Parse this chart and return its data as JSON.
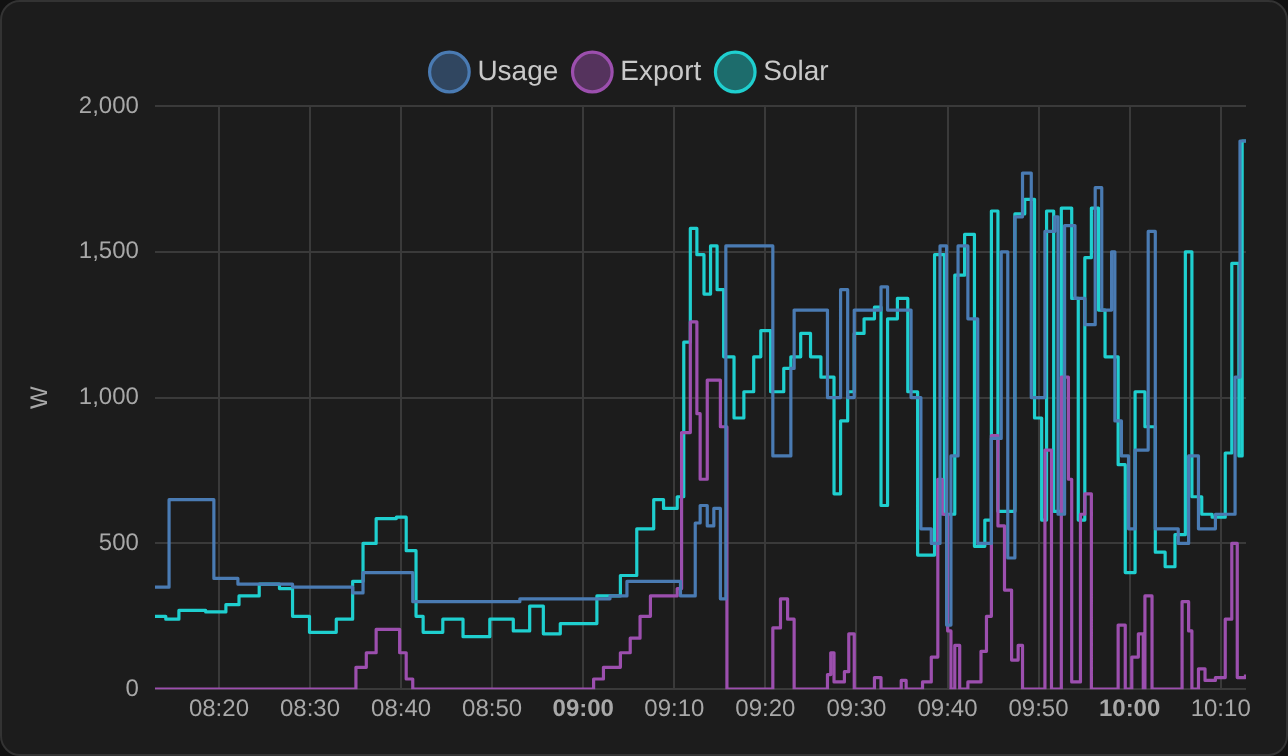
{
  "chart_data": {
    "type": "step",
    "ylabel": "W",
    "legend": "top",
    "grid": true,
    "xlim": [
      8.216,
      10.213
    ],
    "xticks": [
      {
        "value": 8.3333,
        "label": "08:20"
      },
      {
        "value": 8.5,
        "label": "08:30"
      },
      {
        "value": 8.6667,
        "label": "08:40"
      },
      {
        "value": 8.8333,
        "label": "08:50"
      },
      {
        "value": 9,
        "label": "09:00"
      },
      {
        "value": 9.1667,
        "label": "09:10"
      },
      {
        "value": 9.3333,
        "label": "09:20"
      },
      {
        "value": 9.5,
        "label": "09:30"
      },
      {
        "value": 9.6667,
        "label": "09:40"
      },
      {
        "value": 9.8333,
        "label": "09:50"
      },
      {
        "value": 10,
        "label": "10:00"
      },
      {
        "value": 10.1667,
        "label": "10:10"
      }
    ],
    "ylim": [
      0,
      2000
    ],
    "yticks": [
      0,
      500,
      {
        "value": 1000,
        "label": "1,000"
      },
      {
        "value": 1500,
        "label": "1,500"
      },
      {
        "value": 2000,
        "label": "2,000"
      }
    ],
    "series": [
      {
        "name": "Usage",
        "color": "#4a7bb3",
        "x": [
          8.216,
          8.242,
          8.324,
          8.368,
          8.468,
          8.578,
          8.597,
          8.688,
          8.884,
          9.049,
          9.08,
          9.178,
          9.205,
          9.214,
          9.227,
          9.239,
          9.251,
          9.261,
          9.347,
          9.38,
          9.386,
          9.447,
          9.471,
          9.484,
          9.496,
          9.545,
          9.557,
          9.569,
          9.6,
          9.618,
          9.637,
          9.653,
          9.665,
          9.673,
          9.686,
          9.704,
          9.722,
          9.747,
          9.765,
          9.777,
          9.79,
          9.804,
          9.82,
          9.845,
          9.863,
          9.869,
          9.881,
          9.9,
          9.918,
          9.937,
          9.949,
          9.967,
          9.973,
          9.985,
          9.998,
          10.01,
          10.034,
          10.047,
          10.089,
          10.108,
          10.126,
          10.157,
          10.193,
          10.202,
          10.213
        ],
        "values": [
          350,
          650,
          380,
          360,
          350,
          330,
          400,
          300,
          310,
          320,
          370,
          320,
          570,
          630,
          560,
          620,
          310,
          1520,
          800,
          1100,
          1300,
          1000,
          1370,
          1000,
          1300,
          1380,
          1300,
          1300,
          1000,
          550,
          500,
          1520,
          220,
          800,
          1520,
          1270,
          500,
          860,
          1500,
          450,
          1620,
          1770,
          1000,
          1570,
          1620,
          600,
          1590,
          1340,
          1250,
          1720,
          1300,
          1500,
          920,
          800,
          550,
          820,
          1570,
          550,
          500,
          800,
          550,
          600,
          1070,
          1880,
          1880
        ]
      },
      {
        "name": "Export",
        "color": "#9c4fae",
        "x": [
          8.216,
          8.584,
          8.603,
          8.621,
          8.664,
          8.676,
          8.688,
          9.019,
          9.037,
          9.068,
          9.086,
          9.104,
          9.123,
          9.172,
          9.18,
          9.196,
          9.208,
          9.214,
          9.227,
          9.251,
          9.263,
          9.347,
          9.361,
          9.374,
          9.386,
          9.447,
          9.453,
          9.459,
          9.478,
          9.486,
          9.496,
          9.533,
          9.545,
          9.582,
          9.591,
          9.621,
          9.637,
          9.649,
          9.657,
          9.667,
          9.673,
          9.68,
          9.689,
          9.704,
          9.728,
          9.738,
          9.747,
          9.759,
          9.771,
          9.784,
          9.796,
          9.804,
          9.845,
          9.857,
          9.875,
          9.888,
          9.894,
          9.91,
          9.918,
          9.93,
          9.979,
          9.992,
          10.004,
          10.016,
          10.025,
          10.028,
          10.041,
          10.096,
          10.108,
          10.114,
          10.126,
          10.138,
          10.157,
          10.175,
          10.187,
          10.197,
          10.212
        ],
        "values": [
          0,
          75,
          125,
          205,
          125,
          35,
          0,
          35,
          75,
          125,
          175,
          250,
          320,
          345,
          880,
          1260,
          945,
          720,
          1060,
          900,
          0,
          210,
          310,
          240,
          0,
          50,
          125,
          25,
          60,
          190,
          0,
          40,
          0,
          30,
          0,
          25,
          110,
          720,
          600,
          200,
          0,
          150,
          0,
          25,
          130,
          250,
          870,
          560,
          340,
          100,
          150,
          0,
          820,
          0,
          1070,
          720,
          25,
          600,
          670,
          0,
          220,
          0,
          110,
          190,
          0,
          320,
          0,
          300,
          200,
          0,
          70,
          30,
          40,
          240,
          500,
          40,
          50
        ]
      },
      {
        "name": "Solar",
        "color": "#1fcfcf",
        "x": [
          8.216,
          8.236,
          8.26,
          8.309,
          8.346,
          8.37,
          8.407,
          8.444,
          8.468,
          8.499,
          8.548,
          8.578,
          8.597,
          8.621,
          8.658,
          8.676,
          8.694,
          8.707,
          8.743,
          8.78,
          8.829,
          8.872,
          8.902,
          8.927,
          8.958,
          9.025,
          9.068,
          9.098,
          9.129,
          9.147,
          9.172,
          9.184,
          9.196,
          9.208,
          9.221,
          9.233,
          9.245,
          9.257,
          9.276,
          9.294,
          9.312,
          9.325,
          9.343,
          9.367,
          9.38,
          9.398,
          9.416,
          9.435,
          9.459,
          9.471,
          9.484,
          9.496,
          9.514,
          9.533,
          9.545,
          9.557,
          9.575,
          9.594,
          9.612,
          9.643,
          9.661,
          9.68,
          9.698,
          9.716,
          9.735,
          9.747,
          9.759,
          9.79,
          9.808,
          9.826,
          9.839,
          9.848,
          9.861,
          9.875,
          9.894,
          9.906,
          9.918,
          9.93,
          9.943,
          9.955,
          9.979,
          9.992,
          10.01,
          10.028,
          10.047,
          10.065,
          10.083,
          10.102,
          10.114,
          10.132,
          10.151,
          10.175,
          10.187,
          10.2,
          10.206,
          10.213
        ],
        "values": [
          250,
          240,
          270,
          265,
          290,
          320,
          360,
          345,
          250,
          195,
          240,
          370,
          500,
          585,
          590,
          475,
          250,
          195,
          240,
          180,
          240,
          200,
          285,
          190,
          225,
          320,
          390,
          550,
          650,
          620,
          660,
          1190,
          1580,
          1490,
          1355,
          1520,
          1370,
          1140,
          930,
          1020,
          1140,
          1230,
          1020,
          1100,
          1140,
          1220,
          1140,
          1070,
          670,
          920,
          1020,
          1220,
          1270,
          1310,
          630,
          1270,
          1340,
          1020,
          460,
          1490,
          600,
          1420,
          1560,
          490,
          580,
          1640,
          610,
          1630,
          1680,
          930,
          580,
          1640,
          610,
          1650,
          1340,
          580,
          1480,
          1650,
          1300,
          1140,
          770,
          400,
          1020,
          900,
          470,
          420,
          530,
          1500,
          660,
          600,
          590,
          810,
          1460,
          800,
          1880,
          1880
        ]
      }
    ]
  }
}
